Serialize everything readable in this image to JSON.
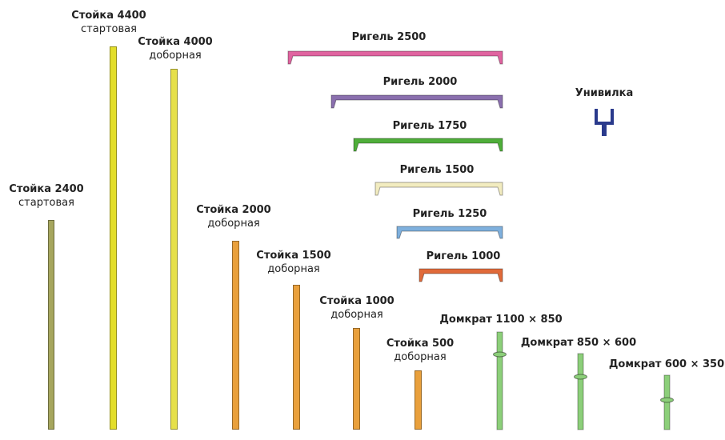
{
  "colors": {
    "post_2400": "#a6a65e",
    "post_4400": "#e3de2a",
    "post_4000": "#e6e04a",
    "post_short": "#e9a03c",
    "jack": "#8ccf7a",
    "rigel_2500": "#e064a0",
    "rigel_2000": "#8a6fae",
    "rigel_1750": "#4fae3a",
    "rigel_1500": "#f2ecc0",
    "rigel_1250": "#7fb0dd",
    "rigel_1000": "#e06a3a",
    "univilka": "#2a3a8c"
  },
  "posts": [
    {
      "id": "2400",
      "title": "Стойка 2400",
      "subtitle": "стартовая",
      "color_key": "post_2400"
    },
    {
      "id": "4400",
      "title": "Стойка 4400",
      "subtitle": "стартовая",
      "color_key": "post_4400"
    },
    {
      "id": "4000",
      "title": "Стойка 4000",
      "subtitle": "доборная",
      "color_key": "post_4000"
    },
    {
      "id": "2000",
      "title": "Стойка 2000",
      "subtitle": "доборная",
      "color_key": "post_short"
    },
    {
      "id": "1500",
      "title": "Стойка 1500",
      "subtitle": "доборная",
      "color_key": "post_short"
    },
    {
      "id": "1000",
      "title": "Стойка 1000",
      "subtitle": "доборная",
      "color_key": "post_short"
    },
    {
      "id": "500",
      "title": "Стойка 500",
      "subtitle": "доборная",
      "color_key": "post_short"
    }
  ],
  "rigels": [
    {
      "id": "2500",
      "title": "Ригель 2500",
      "color_key": "rigel_2500"
    },
    {
      "id": "2000",
      "title": "Ригель 2000",
      "color_key": "rigel_2000"
    },
    {
      "id": "1750",
      "title": "Ригель 1750",
      "color_key": "rigel_1750"
    },
    {
      "id": "1500",
      "title": "Ригель 1500",
      "color_key": "rigel_1500"
    },
    {
      "id": "1250",
      "title": "Ригель 1250",
      "color_key": "rigel_1250"
    },
    {
      "id": "1000",
      "title": "Ригель 1000",
      "color_key": "rigel_1000"
    }
  ],
  "univilka": {
    "title": "Унивилка",
    "icon": "fork-head-icon"
  },
  "jacks": [
    {
      "id": "1100x850",
      "title": "Домкрат 1100 × 850"
    },
    {
      "id": "850x600",
      "title": "Домкрат 850 × 600"
    },
    {
      "id": "600x350",
      "title": "Домкрат 600 × 350"
    }
  ]
}
